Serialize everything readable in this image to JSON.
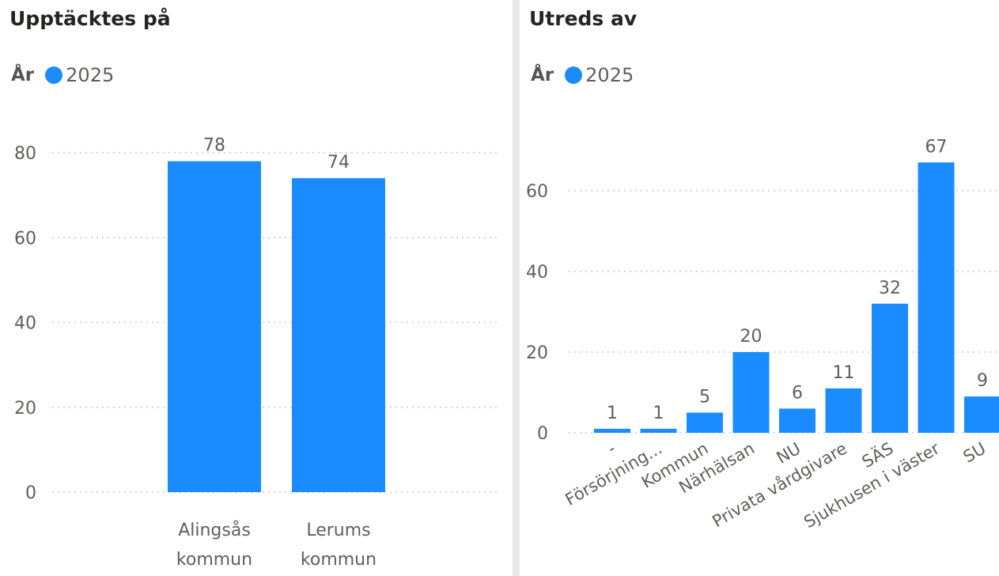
{
  "colors": {
    "bar": "#1a8cff",
    "grid": "#c8c8c8",
    "text": "#605e5c",
    "title": "#252423",
    "divider": "#e9e9e9"
  },
  "chart_data": [
    {
      "type": "bar",
      "title": "Upptäcktes på",
      "legend": {
        "title": "År",
        "items": [
          "2025"
        ],
        "position": "top-left"
      },
      "categories": [
        "Alingsås kommun",
        "Lerums kommun"
      ],
      "category_lines": [
        [
          "Alingsås",
          "kommun"
        ],
        [
          "Lerums",
          "kommun"
        ]
      ],
      "series": [
        {
          "name": "2025",
          "values": [
            78,
            74
          ]
        }
      ],
      "yticks": [
        0,
        20,
        40,
        60,
        80
      ],
      "ylim": [
        0,
        80
      ],
      "grid": true,
      "data_labels": true
    },
    {
      "type": "bar",
      "title": "Utreds av",
      "legend": {
        "title": "År",
        "items": [
          "2025"
        ],
        "position": "top-left"
      },
      "categories": [
        "-",
        "Försörjning...",
        "Kommun",
        "Närhälsan",
        "NU",
        "Privata vårdgivare",
        "SÄS",
        "Sjukhusen i väster",
        "SU"
      ],
      "series": [
        {
          "name": "2025",
          "values": [
            1,
            1,
            5,
            20,
            6,
            11,
            32,
            67,
            9
          ]
        }
      ],
      "yticks": [
        0,
        20,
        40,
        60
      ],
      "ylim": [
        0,
        60
      ],
      "grid": true,
      "data_labels": true
    }
  ]
}
